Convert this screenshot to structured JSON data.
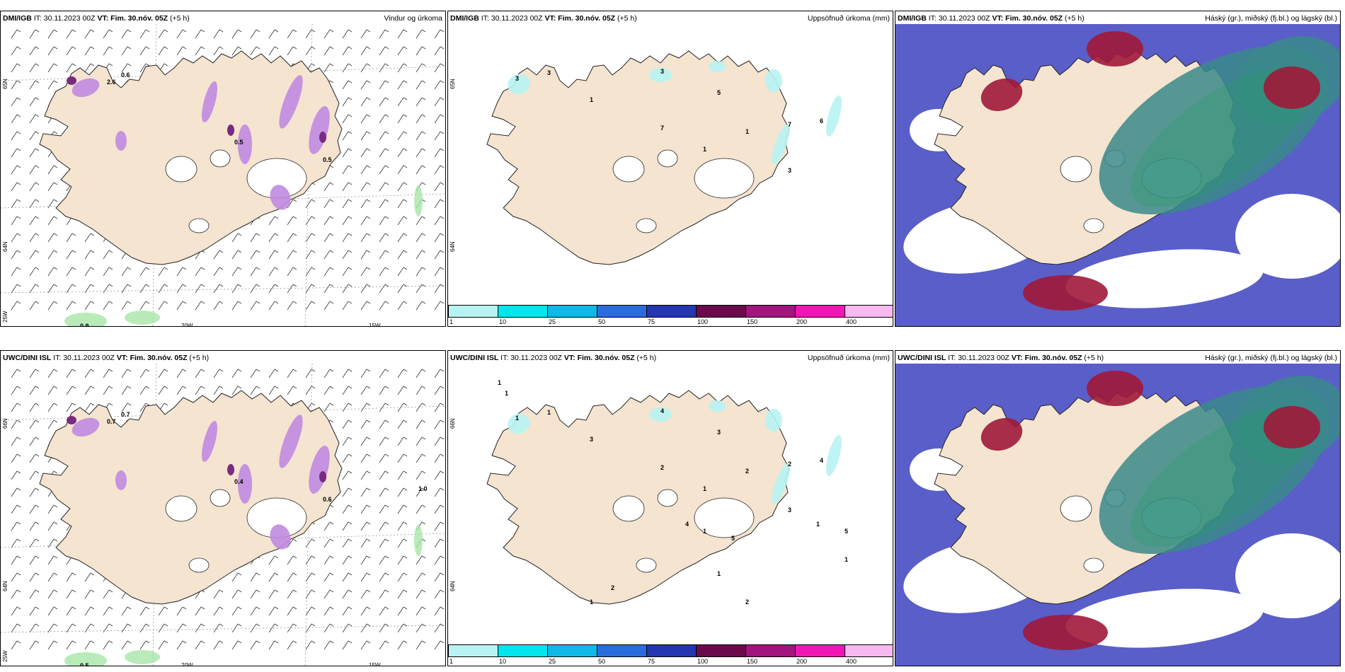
{
  "panels": [
    {
      "model": "DMI/IGB",
      "it_label": "IT:",
      "it": "30.11.2023 00Z",
      "vt_label": "VT:",
      "vt": "Fim. 30.nóv. 05Z",
      "lead": "(+5 h)",
      "title": "Vindur og úrkoma",
      "kind": "wind",
      "labels": [
        "0.6",
        "2.6",
        "0.5",
        "0.5",
        "0.9"
      ],
      "lon_labels": [
        "20W",
        "15W"
      ],
      "lat_labels": [
        "65N",
        "64N",
        "25W"
      ]
    },
    {
      "model": "DMI/IGB",
      "it_label": "IT:",
      "it": "30.11.2023 00Z",
      "vt_label": "VT:",
      "vt": "Fim. 30.nóv. 05Z",
      "lead": "(+5 h)",
      "title": "Uppsöfnuð úrkoma (mm)",
      "kind": "accum",
      "labels": [
        "3",
        "3",
        "1",
        "3",
        "5",
        "1",
        "1",
        "7",
        "6",
        "7",
        "3"
      ],
      "lon_labels": [],
      "lat_labels": [
        "65N",
        "64N"
      ]
    },
    {
      "model": "DMI/IGB",
      "it_label": "IT:",
      "it": "30.11.2023 00Z",
      "vt_label": "VT:",
      "vt": "Fim. 30.nóv. 05Z",
      "lead": "(+5 h)",
      "title": "Háský (gr.), miðský (fj.bl.) og lágský (bl.)",
      "kind": "cloud",
      "labels": [],
      "lon_labels": [],
      "lat_labels": []
    },
    {
      "model": "UWC/DINI ISL",
      "it_label": "IT:",
      "it": "30.11.2023 00Z",
      "vt_label": "VT:",
      "vt": "Fim. 30.nóv. 05Z",
      "lead": "(+5 h)",
      "title": "",
      "kind": "wind",
      "labels": [
        "0.7",
        "0.7",
        "0.4",
        "0.6",
        "0.5",
        "1.0"
      ],
      "lon_labels": [
        "20W",
        "15W"
      ],
      "lat_labels": [
        "66N",
        "64N",
        "25W"
      ]
    },
    {
      "model": "UWC/DINI ISL",
      "it_label": "IT:",
      "it": "30.11.2023 00Z",
      "vt_label": "VT:",
      "vt": "Fim. 30.nóv. 05Z",
      "lead": "(+5 h)",
      "title": "Uppsöfnuð úrkoma (mm)",
      "kind": "accum",
      "labels": [
        "1",
        "1",
        "3",
        "4",
        "3",
        "2",
        "1",
        "2",
        "4",
        "2",
        "3",
        "4",
        "1",
        "5",
        "5",
        "1",
        "1",
        "2",
        "2",
        "1",
        "1",
        "1",
        "1"
      ],
      "lon_labels": [],
      "lat_labels": [
        "66N",
        "64N"
      ]
    },
    {
      "model": "UWC/DINI ISL",
      "it_label": "IT:",
      "it": "30.11.2023 00Z",
      "vt_label": "VT:",
      "vt": "Fim. 30.nóv. 05Z",
      "lead": "(+5 h)",
      "title": "Háský (gr.), miðský (fj.bl.) og lágský (bl.)",
      "kind": "cloud",
      "labels": [],
      "lon_labels": [],
      "lat_labels": []
    }
  ],
  "colorbar": {
    "ticks": [
      "1",
      "10",
      "25",
      "50",
      "75",
      "100",
      "150",
      "200",
      "400"
    ],
    "colors": [
      "#b8f3f3",
      "#00e5ee",
      "#10b8e8",
      "#2a6cdc",
      "#2436b0",
      "#6a0a4c",
      "#a0157e",
      "#f016b4",
      "#f8b8f0"
    ]
  },
  "colors": {
    "land": "#f4e4d0",
    "ice": "#ffffff",
    "precip_light": "#c08ae0",
    "precip_heavy": "#7a2a80",
    "green_precip": "#a8e6a8",
    "accum_cyan": "#b8f3f3",
    "cloud_low": "#5a5ec8",
    "cloud_mid": "#3a8a8a",
    "cloud_high": "#2a9a6a",
    "cloud_red": "#a01838"
  }
}
